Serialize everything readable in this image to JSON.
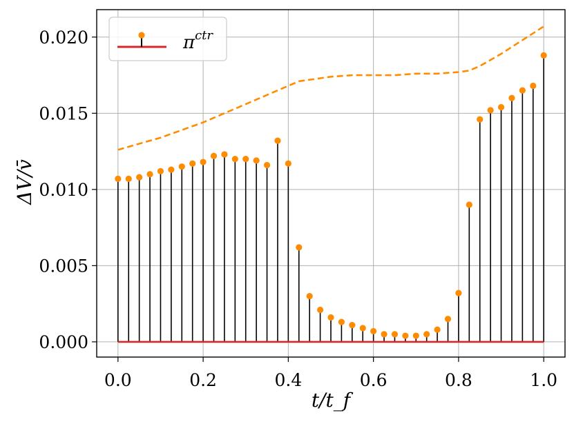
{
  "chart_data": {
    "type": "stem",
    "xlabel": "t/t_f",
    "ylabel": "ΔV/v̄",
    "xlim": [
      -0.05,
      1.05
    ],
    "ylim": [
      -0.001,
      0.0218
    ],
    "x_ticks": [
      0.0,
      0.2,
      0.4,
      0.6,
      0.8,
      1.0
    ],
    "x_tick_labels": [
      "0.0",
      "0.2",
      "0.4",
      "0.6",
      "0.8",
      "1.0"
    ],
    "y_ticks": [
      0.0,
      0.005,
      0.01,
      0.015,
      0.02
    ],
    "y_tick_labels": [
      "0.000",
      "0.005",
      "0.010",
      "0.015",
      "0.020"
    ],
    "grid": true,
    "legend": {
      "placement": "top-left",
      "entries": [
        {
          "base": "π",
          "sup": "ctr"
        }
      ]
    },
    "x": [
      0.0,
      0.025,
      0.05,
      0.075,
      0.1,
      0.125,
      0.15,
      0.175,
      0.2,
      0.225,
      0.25,
      0.275,
      0.3,
      0.325,
      0.35,
      0.375,
      0.4,
      0.425,
      0.45,
      0.475,
      0.5,
      0.525,
      0.55,
      0.575,
      0.6,
      0.625,
      0.65,
      0.675,
      0.7,
      0.725,
      0.75,
      0.775,
      0.8,
      0.825,
      0.85,
      0.875,
      0.9,
      0.925,
      0.95,
      0.975,
      1.0
    ],
    "series": [
      {
        "kind": "stem",
        "values": [
          0.0107,
          0.0107,
          0.0108,
          0.011,
          0.0112,
          0.0113,
          0.0115,
          0.0117,
          0.0118,
          0.0122,
          0.0123,
          0.012,
          0.012,
          0.0119,
          0.0116,
          0.0132,
          0.0117,
          0.0062,
          0.003,
          0.0021,
          0.0016,
          0.0013,
          0.0011,
          0.0009,
          0.0007,
          0.0005,
          0.0005,
          0.0004,
          0.0004,
          0.0005,
          0.0008,
          0.0015,
          0.0032,
          0.009,
          0.0146,
          0.0152,
          0.0154,
          0.016,
          0.0165,
          0.0168,
          0.0188
        ],
        "marker_color": "#ff8c00",
        "stem_color": "#000000",
        "baseline_color": "#d62728"
      },
      {
        "kind": "line",
        "style": "dashed",
        "color": "#ff8c00",
        "x": [
          0.0,
          0.05,
          0.1,
          0.15,
          0.2,
          0.25,
          0.3,
          0.35,
          0.4,
          0.425,
          0.45,
          0.5,
          0.55,
          0.6,
          0.65,
          0.7,
          0.75,
          0.8,
          0.825,
          0.85,
          0.9,
          0.95,
          1.0
        ],
        "values": [
          0.0126,
          0.013,
          0.0134,
          0.0139,
          0.0144,
          0.015,
          0.0156,
          0.0162,
          0.0168,
          0.0171,
          0.0172,
          0.0174,
          0.0175,
          0.0175,
          0.0175,
          0.0176,
          0.0176,
          0.0177,
          0.0178,
          0.0181,
          0.0189,
          0.0198,
          0.0207
        ]
      }
    ]
  }
}
